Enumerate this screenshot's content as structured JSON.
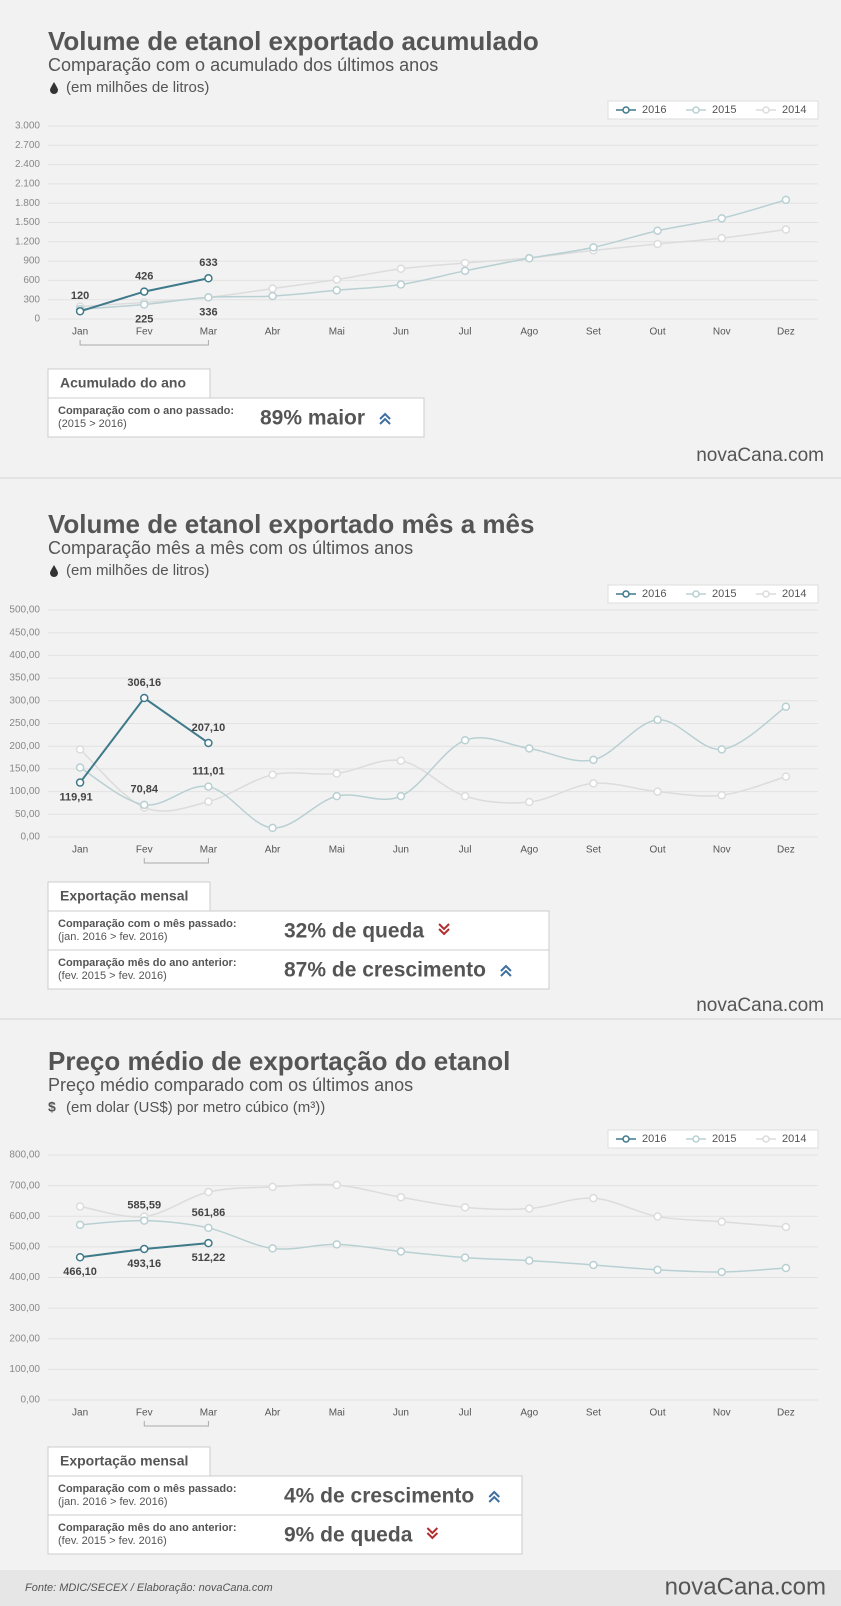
{
  "chart_data": [
    {
      "type": "line",
      "title": "Volume de etanol exportado acumulado",
      "subtitle": "Comparação com o acumulado dos últimos anos",
      "unit": "(em milhões de litros)",
      "categories": [
        "Jan",
        "Fev",
        "Mar",
        "Abr",
        "Mai",
        "Jun",
        "Jul",
        "Ago",
        "Set",
        "Out",
        "Nov",
        "Dez"
      ],
      "series": [
        {
          "name": "2016",
          "color": "#3f7a8a",
          "values": [
            120,
            426,
            633,
            null,
            null,
            null,
            null,
            null,
            null,
            null,
            null,
            null
          ],
          "value_labels": [
            "120",
            "426",
            "633",
            null,
            null,
            null,
            null,
            null,
            null,
            null,
            null,
            null
          ]
        },
        {
          "name": "2015",
          "color": "#b9d0d3",
          "values": [
            153,
            225,
            336,
            356,
            446,
            536,
            749,
            944,
            1114,
            1372,
            1565,
            1852
          ],
          "value_labels": [
            null,
            "225",
            "336",
            null,
            null,
            null,
            null,
            null,
            null,
            null,
            null,
            null
          ]
        },
        {
          "name": "2014",
          "color": "#dcdcdc",
          "values": [
            193,
            258,
            336,
            473,
            613,
            781,
            871,
            948,
            1066,
            1166,
            1258,
            1391
          ]
        }
      ],
      "ylim": [
        0,
        3000
      ],
      "yticks": [
        0,
        300,
        600,
        900,
        {
          "value": 1200,
          "label": "1.200"
        },
        {
          "value": 1500,
          "label": "1.500"
        },
        {
          "value": 1800,
          "label": "1.800"
        },
        {
          "value": 2100,
          "label": "2.100"
        },
        {
          "value": 2400,
          "label": "2.400"
        },
        {
          "value": 2700,
          "label": "2.700"
        },
        {
          "value": 3000,
          "label": "3.000"
        }
      ],
      "grid": true,
      "legend": "top-right"
    },
    {
      "type": "line",
      "title": "Volume de etanol exportado mês a mês",
      "subtitle": "Comparação mês a mês com os últimos anos",
      "unit": "(em milhões de litros)",
      "categories": [
        "Jan",
        "Fev",
        "Mar",
        "Abr",
        "Mai",
        "Jun",
        "Jul",
        "Ago",
        "Set",
        "Out",
        "Nov",
        "Dez"
      ],
      "series": [
        {
          "name": "2016",
          "color": "#3f7a8a",
          "values": [
            119.91,
            306.16,
            207.1,
            null,
            null,
            null,
            null,
            null,
            null,
            null,
            null,
            null
          ],
          "value_labels": [
            "119,91",
            "306,16",
            "207,10",
            null,
            null,
            null,
            null,
            null,
            null,
            null,
            null,
            null
          ]
        },
        {
          "name": "2015",
          "color": "#b9d0d3",
          "values": [
            153,
            70.84,
            111.01,
            20,
            90,
            90,
            213,
            195,
            170,
            258,
            193,
            287
          ],
          "value_labels": [
            null,
            "70,84",
            "111,01",
            null,
            null,
            null,
            null,
            null,
            null,
            null,
            null,
            null
          ]
        },
        {
          "name": "2014",
          "color": "#dcdcdc",
          "values": [
            193,
            65,
            78,
            137,
            140,
            168,
            90,
            77,
            118,
            100,
            92,
            133
          ]
        }
      ],
      "ylim": [
        0,
        500
      ],
      "yticks": [
        {
          "value": 0,
          "label": "0,00"
        },
        {
          "value": 50,
          "label": "50,00"
        },
        {
          "value": 100,
          "label": "100,00"
        },
        {
          "value": 150,
          "label": "150,00"
        },
        {
          "value": 200,
          "label": "200,00"
        },
        {
          "value": 250,
          "label": "250,00"
        },
        {
          "value": 300,
          "label": "300,00"
        },
        {
          "value": 350,
          "label": "350,00"
        },
        {
          "value": 400,
          "label": "400,00"
        },
        {
          "value": 450,
          "label": "450,00"
        },
        {
          "value": 500,
          "label": "500,00"
        }
      ],
      "grid": true,
      "legend": "top-right"
    },
    {
      "type": "line",
      "title": "Preço médio de exportação do etanol",
      "subtitle": "Preço médio comparado com os últimos anos",
      "unit": "(em dolar (US$) por metro cúbico (m³))",
      "unit_symbol": "$",
      "categories": [
        "Jan",
        "Fev",
        "Mar",
        "Abr",
        "Mai",
        "Jun",
        "Jul",
        "Ago",
        "Set",
        "Out",
        "Nov",
        "Dez"
      ],
      "series": [
        {
          "name": "2016",
          "color": "#3f7a8a",
          "values": [
            466.1,
            493.16,
            512.22,
            null,
            null,
            null,
            null,
            null,
            null,
            null,
            null,
            null
          ],
          "value_labels": [
            "466,10",
            "493,16",
            "512,22",
            null,
            null,
            null,
            null,
            null,
            null,
            null,
            null,
            null
          ]
        },
        {
          "name": "2015",
          "color": "#b9d0d3",
          "values": [
            572,
            585.59,
            561.86,
            495,
            508,
            485,
            465,
            455,
            441,
            425,
            418,
            431
          ],
          "value_labels": [
            null,
            "585,59",
            "561,86",
            null,
            null,
            null,
            null,
            null,
            null,
            null,
            null,
            null
          ]
        },
        {
          "name": "2014",
          "color": "#dcdcdc",
          "values": [
            632,
            599,
            679,
            696,
            702,
            662,
            629,
            625,
            659,
            599,
            582,
            565
          ]
        }
      ],
      "ylim": [
        0,
        800
      ],
      "yticks": [
        {
          "value": 0,
          "label": "0,00"
        },
        {
          "value": 100,
          "label": "100,00"
        },
        {
          "value": 200,
          "label": "200,00"
        },
        {
          "value": 300,
          "label": "300,00"
        },
        {
          "value": 400,
          "label": "400,00"
        },
        {
          "value": 500,
          "label": "500,00"
        },
        {
          "value": 600,
          "label": "600,00"
        },
        {
          "value": 700,
          "label": "700,00"
        },
        {
          "value": 800,
          "label": "800,00"
        }
      ],
      "grid": true,
      "legend": "top-right"
    }
  ],
  "summaries": [
    {
      "tab": "Acumulado do ano",
      "rows": [
        {
          "label": "Comparação com o ano passado:",
          "note": "(2015 > 2016)",
          "result": "89% maior",
          "trend": "up"
        }
      ]
    },
    {
      "tab": "Exportação mensal",
      "rows": [
        {
          "label": "Comparação com o mês passado:",
          "note": "(jan. 2016 > fev. 2016)",
          "result": "32% de queda",
          "trend": "down"
        },
        {
          "label": "Comparação mês do ano anterior:",
          "note": "(fev. 2015 > fev. 2016)",
          "result": "87% de crescimento",
          "trend": "up"
        }
      ]
    },
    {
      "tab": "Exportação mensal",
      "rows": [
        {
          "label": "Comparação com o mês passado:",
          "note": "(jan. 2016 > fev. 2016)",
          "result": "4% de crescimento",
          "trend": "up"
        },
        {
          "label": "Comparação mês do ano anterior:",
          "note": "(fev. 2015 > fev. 2016)",
          "result": "9% de queda",
          "trend": "down"
        }
      ]
    }
  ],
  "brand": "novaCana.com",
  "footer": {
    "source": "Fonte: MDIC/SECEX  / Elaboração: novaCana.com"
  }
}
